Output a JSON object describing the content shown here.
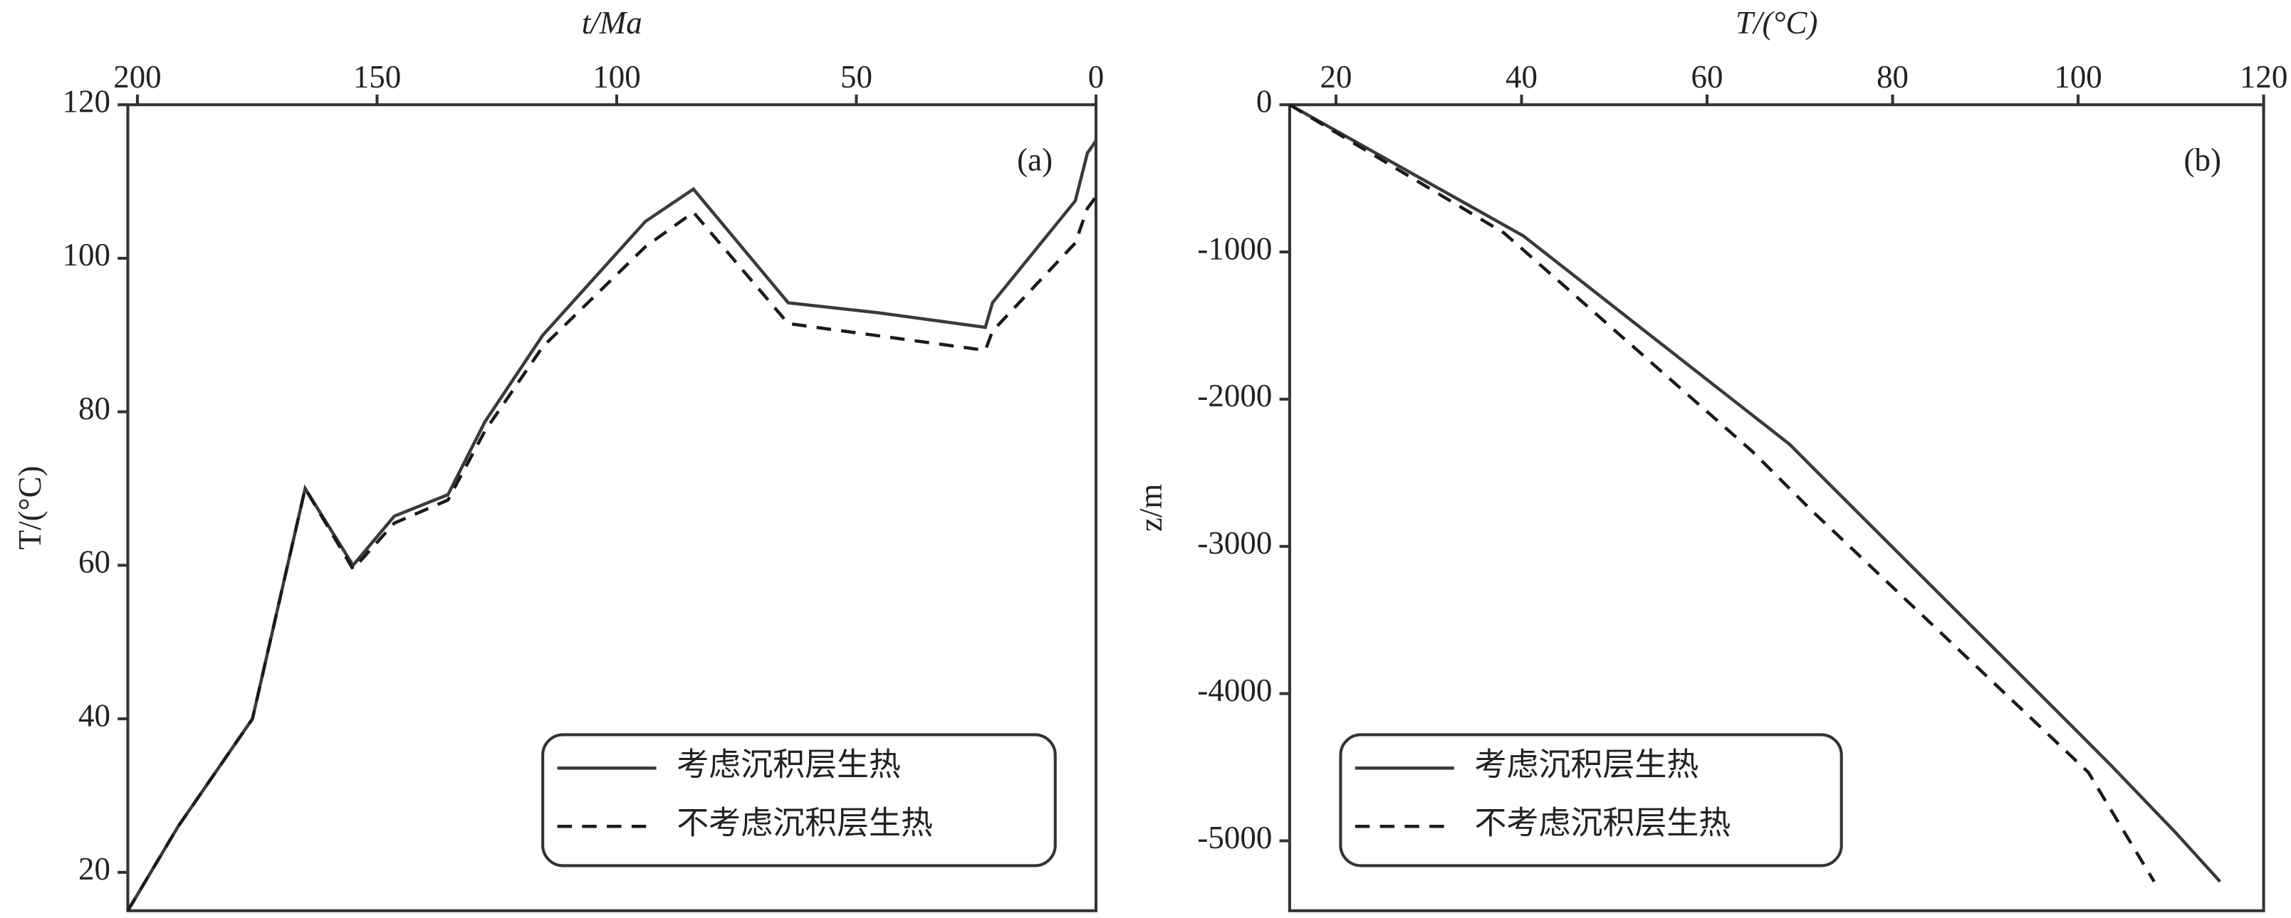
{
  "chart_data": [
    {
      "type": "line",
      "panel_label": "(a)",
      "x_label": "t/Ma",
      "y_label": "T/(°C)",
      "xlim": [
        202,
        0
      ],
      "ylim": [
        15,
        120
      ],
      "xticks": [
        200,
        150,
        100,
        50,
        0
      ],
      "yticks": [
        20,
        40,
        60,
        80,
        100,
        120
      ],
      "legend": "bottom-right",
      "series": [
        {
          "name": "考虑沉积层生热",
          "color": "#3a3a3a",
          "dash": "solid",
          "x": [
            202,
            191.5,
            176,
            165,
            155,
            146.4,
            135.2,
            127.5,
            115.4,
            94,
            84,
            64.2,
            45.4,
            23.1,
            21.6,
            4.3,
            1.8,
            0
          ],
          "values": [
            15,
            26,
            40,
            70,
            60,
            66.4,
            69.2,
            78.7,
            90,
            104.8,
            109,
            94.2,
            92.9,
            91,
            94.2,
            107.5,
            113.7,
            115.3
          ]
        },
        {
          "name": "不考虑沉积层生热",
          "color": "#1a1a1a",
          "dash": "dashed",
          "x": [
            202,
            191.5,
            176,
            165,
            155,
            146.4,
            135.2,
            127.5,
            115.4,
            94,
            84,
            64.2,
            23.1,
            21.6,
            4.3,
            1.8,
            0
          ],
          "values": [
            15,
            26,
            40,
            70,
            59.5,
            65.5,
            68.5,
            77.5,
            88.5,
            101.5,
            106,
            91.5,
            88,
            90.5,
            102,
            106.5,
            108
          ]
        }
      ]
    },
    {
      "type": "line",
      "panel_label": "(b)",
      "x_label": "T/(°C)",
      "y_label": "z/m",
      "xlim": [
        15,
        120
      ],
      "ylim": [
        -5475,
        0
      ],
      "xticks": [
        20,
        40,
        60,
        80,
        100,
        120
      ],
      "yticks": [
        0,
        -1000,
        -2000,
        -3000,
        -4000,
        -5000
      ],
      "legend": "bottom-left",
      "series": [
        {
          "name": "考虑沉积层生热",
          "color": "#3a3a3a",
          "dash": "solid",
          "x": [
            15,
            40.2,
            68.9,
            73.6,
            99.6,
            103.5,
            110.6,
            115.3
          ],
          "values": [
            0,
            -891,
            -2307,
            -2604,
            -4238,
            -4485,
            -4950,
            -5277
          ]
        },
        {
          "name": "不考虑沉积层生热",
          "color": "#1a1a1a",
          "dash": "dashed",
          "x": [
            15,
            38.1,
            64.9,
            71.2,
            101.1,
            108.2
          ],
          "values": [
            0,
            -871,
            -2356,
            -2752,
            -4535,
            -5277
          ]
        }
      ]
    }
  ]
}
